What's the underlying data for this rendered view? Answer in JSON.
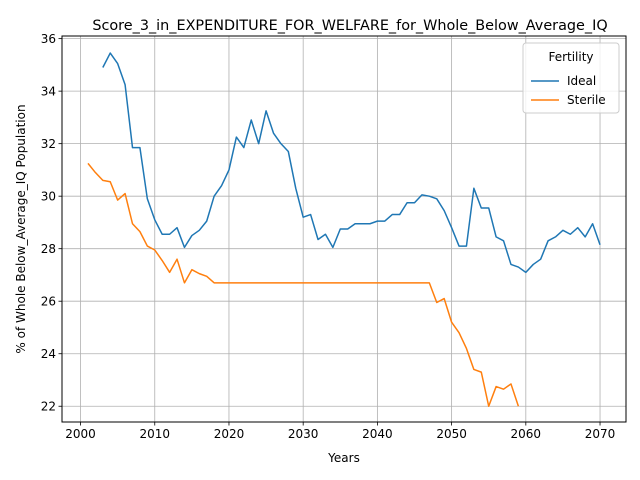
{
  "chart_data": {
    "type": "line",
    "title": "Score_3_in_EXPENDITURE_FOR_WELFARE_for_Whole_Below_Average_IQ",
    "xlabel": "Years",
    "ylabel": "% of Whole Below_Average_IQ Population",
    "xlim": [
      1997.5,
      2073.5
    ],
    "ylim": [
      21.4,
      36.1
    ],
    "x_ticks": [
      2000,
      2010,
      2020,
      2030,
      2040,
      2050,
      2060,
      2070
    ],
    "y_ticks": [
      22,
      24,
      26,
      28,
      30,
      32,
      34,
      36
    ],
    "grid": true,
    "legend": {
      "title": "Fertility",
      "placement": "top-right"
    },
    "series": [
      {
        "name": "Ideal",
        "color": "#1f77b4",
        "x": [
          2003,
          2004,
          2005,
          2006,
          2007,
          2008,
          2009,
          2010,
          2011,
          2012,
          2013,
          2014,
          2015,
          2016,
          2017,
          2018,
          2019,
          2020,
          2021,
          2022,
          2023,
          2024,
          2025,
          2026,
          2027,
          2028,
          2029,
          2030,
          2031,
          2032,
          2033,
          2034,
          2035,
          2036,
          2037,
          2038,
          2039,
          2040,
          2041,
          2042,
          2043,
          2044,
          2045,
          2046,
          2047,
          2048,
          2049,
          2050,
          2051,
          2052,
          2053,
          2054,
          2055,
          2056,
          2057,
          2058,
          2059,
          2060,
          2061,
          2062,
          2063,
          2064,
          2065,
          2066,
          2067,
          2068,
          2069,
          2070
        ],
        "y": [
          34.9,
          35.45,
          35.05,
          34.25,
          31.85,
          31.85,
          29.9,
          29.1,
          28.55,
          28.55,
          28.8,
          28.05,
          28.5,
          28.7,
          29.05,
          30.0,
          30.4,
          31.0,
          32.25,
          31.85,
          32.9,
          32.0,
          33.25,
          32.4,
          32.0,
          31.7,
          30.3,
          29.2,
          29.3,
          28.35,
          28.55,
          28.05,
          28.75,
          28.75,
          28.95,
          28.95,
          28.95,
          29.05,
          29.05,
          29.3,
          29.3,
          29.75,
          29.75,
          30.05,
          30.0,
          29.9,
          29.45,
          28.8,
          28.1,
          28.1,
          30.3,
          29.55,
          29.55,
          28.45,
          28.3,
          27.4,
          27.3,
          27.1,
          27.4,
          27.6,
          28.3,
          28.45,
          28.7,
          28.55,
          28.8,
          28.45,
          28.95,
          28.15
        ]
      },
      {
        "name": "Sterile",
        "color": "#ff7f0e",
        "x": [
          2001,
          2002,
          2003,
          2004,
          2005,
          2006,
          2007,
          2008,
          2009,
          2010,
          2011,
          2012,
          2013,
          2014,
          2015,
          2016,
          2017,
          2018,
          2019,
          2020,
          2021,
          2022,
          2023,
          2024,
          2025,
          2026,
          2027,
          2028,
          2029,
          2030,
          2031,
          2032,
          2033,
          2034,
          2035,
          2036,
          2037,
          2038,
          2039,
          2040,
          2041,
          2042,
          2043,
          2044,
          2045,
          2046,
          2047,
          2048,
          2049,
          2050,
          2051,
          2052,
          2053,
          2054,
          2055,
          2056,
          2057,
          2058,
          2059
        ],
        "y": [
          31.25,
          30.9,
          30.6,
          30.55,
          29.85,
          30.1,
          28.95,
          28.65,
          28.1,
          27.95,
          27.55,
          27.1,
          27.6,
          26.7,
          27.2,
          27.05,
          26.95,
          26.7,
          26.7,
          26.7,
          26.7,
          26.7,
          26.7,
          26.7,
          26.7,
          26.7,
          26.7,
          26.7,
          26.7,
          26.7,
          26.7,
          26.7,
          26.7,
          26.7,
          26.7,
          26.7,
          26.7,
          26.7,
          26.7,
          26.7,
          26.7,
          26.7,
          26.7,
          26.7,
          26.7,
          26.7,
          26.7,
          25.95,
          26.1,
          25.2,
          24.8,
          24.2,
          23.4,
          23.3,
          22.0,
          22.75,
          22.65,
          22.85,
          22.0
        ]
      }
    ]
  }
}
